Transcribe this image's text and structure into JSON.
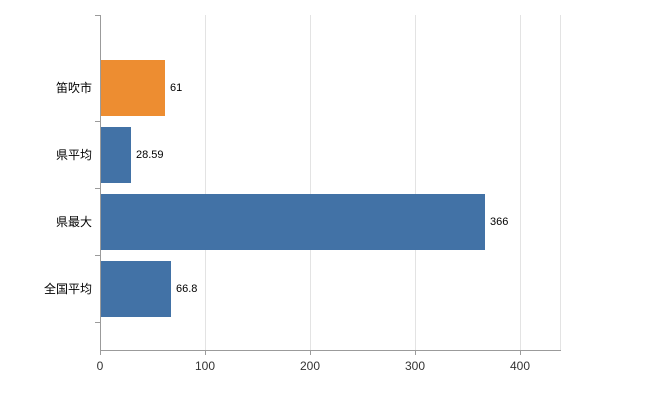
{
  "chart_data": {
    "type": "bar",
    "orientation": "horizontal",
    "categories": [
      "笛吹市",
      "県平均",
      "県最大",
      "全国平均"
    ],
    "values": [
      61,
      28.59,
      366,
      66.8
    ],
    "value_labels": [
      "61",
      "28.59",
      "366",
      "66.8"
    ],
    "bar_colors": [
      "#ED8D31",
      "#4272A6",
      "#4272A6",
      "#4272A6"
    ],
    "x_ticks": [
      "0",
      "100",
      "200",
      "300",
      "400"
    ],
    "x_tick_values": [
      0,
      100,
      200,
      300,
      400
    ],
    "xlim": [
      0,
      438
    ],
    "grid": true,
    "legend": "none"
  },
  "colors": {
    "grid": "#e3e3e3",
    "axis": "#9b9b9b",
    "orange_bar": "#ED8D31",
    "blue_bar": "#4272A6",
    "background": "#ffffff"
  }
}
